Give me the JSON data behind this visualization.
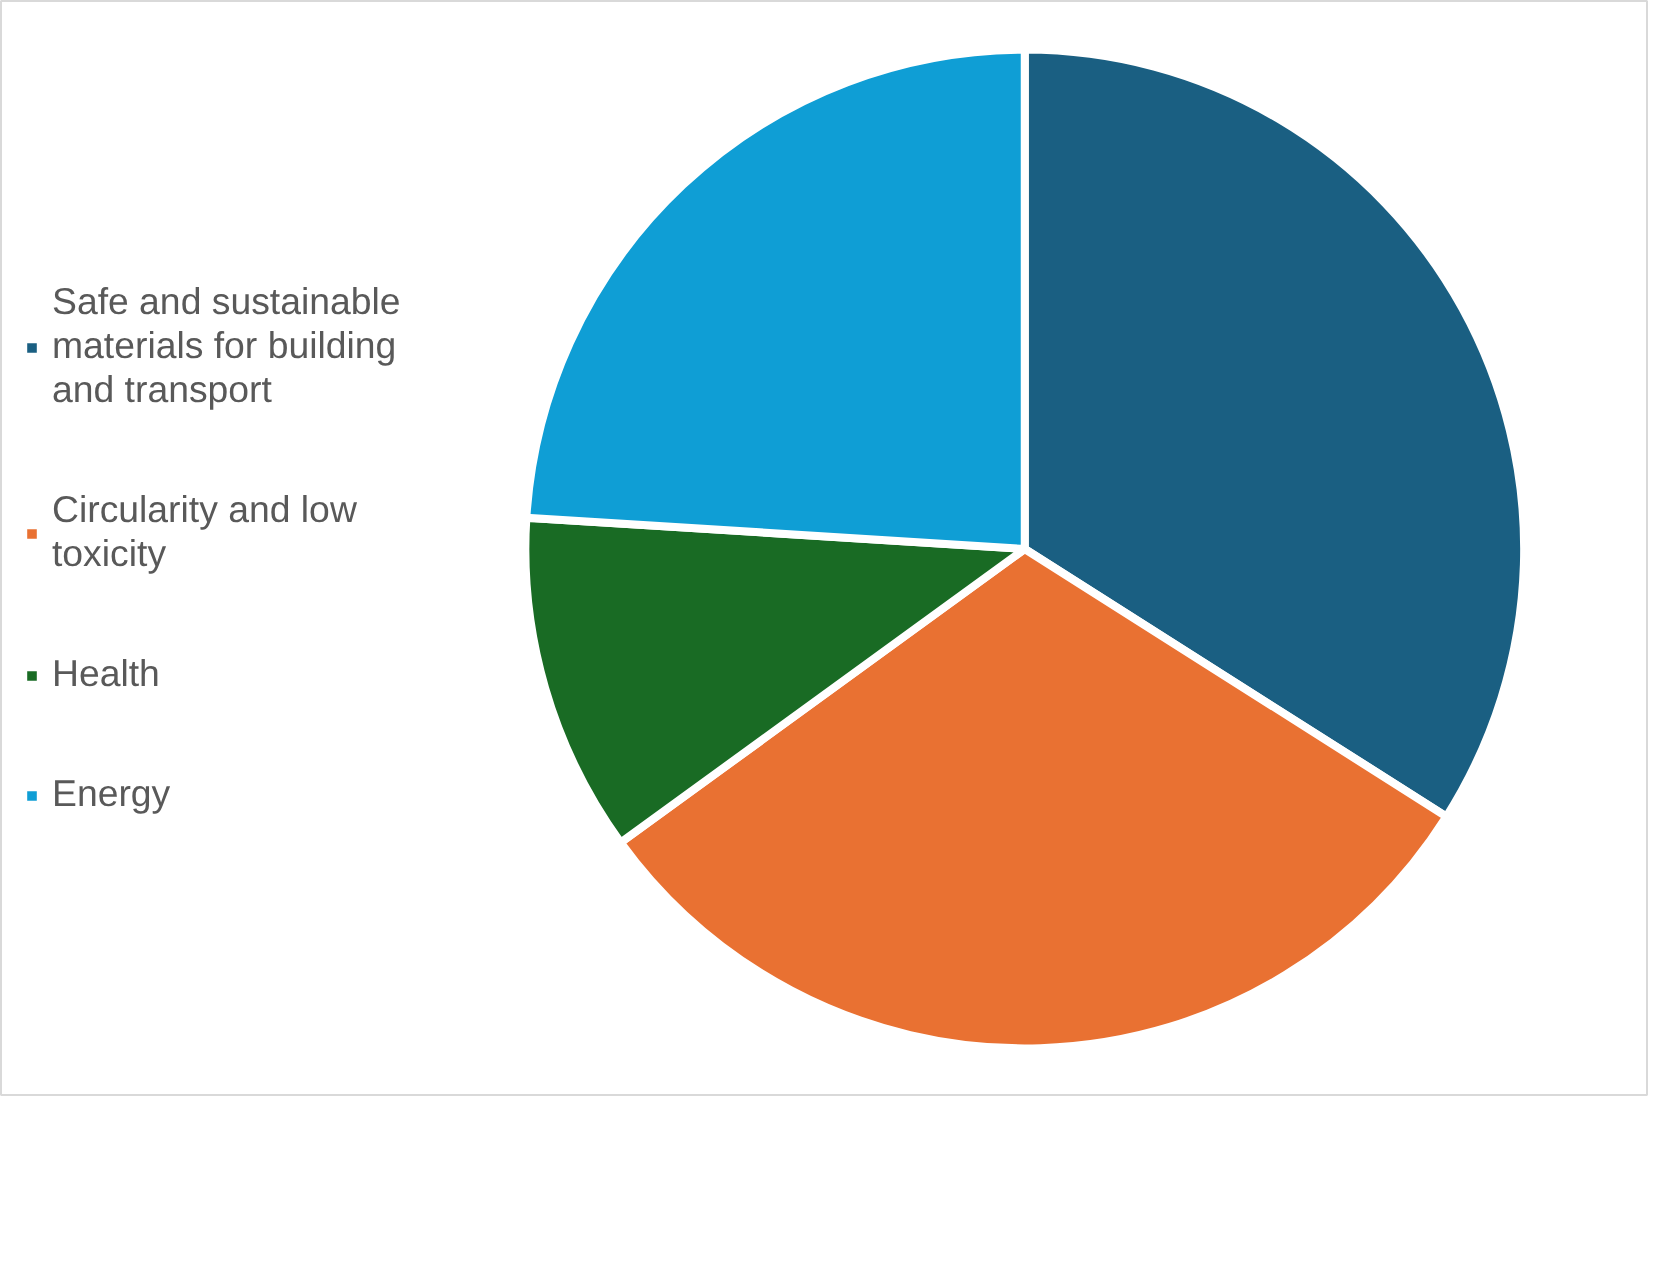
{
  "chart_data": {
    "type": "pie",
    "categories": [
      "Safe and sustainable materials for building and transport",
      "Circularity and low toxicity",
      "Health",
      "Energy"
    ],
    "values": [
      34,
      31,
      11,
      24
    ],
    "colors": [
      "#1a5f82",
      "#e97132",
      "#196b24",
      "#0f9ed5"
    ],
    "legend": "left"
  }
}
